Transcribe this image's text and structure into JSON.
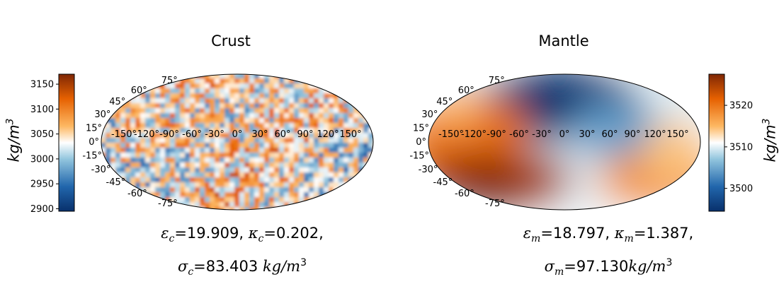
{
  "chart_data": [
    {
      "type": "heatmap",
      "projection": "mollweide",
      "title": "Crust",
      "lon_tick_labels": [
        "-150°",
        "-120°",
        "-90°",
        "-60°",
        "-30°",
        "0°",
        "30°",
        "60°",
        "90°",
        "120°",
        "150°"
      ],
      "lat_tick_labels": [
        "75°",
        "60°",
        "45°",
        "30°",
        "15°",
        "0°",
        "-15°",
        "-30°",
        "-45°",
        "-60°",
        "-75°"
      ],
      "colorbar": {
        "min": 2895,
        "max": 3170,
        "ticks": [
          2900,
          2950,
          3000,
          3050,
          3100,
          3150
        ],
        "tick_labels": [
          "2900",
          "2950",
          "3000",
          "3050",
          "3100",
          "3150"
        ],
        "label_main": "kg/m",
        "label_sup": "3",
        "colormap": "blue-white-orange",
        "colors": [
          "#08306b",
          "#2166ac",
          "#92c5de",
          "#ffffff",
          "#fdb863",
          "#e66101",
          "#7f2704"
        ]
      },
      "caption": {
        "eps_sym": "ε",
        "eps_sub": "c",
        "eps_val": "=19.909, ",
        "kappa_sym": "κ",
        "kappa_sub": "c",
        "kappa_val": "=0.202,",
        "sigma_sym": "σ",
        "sigma_sub": "c",
        "sigma_val": "=83.403 ",
        "unit_main": "kg/m",
        "unit_sup": "3"
      }
    },
    {
      "type": "heatmap",
      "projection": "mollweide",
      "title": "Mantle",
      "lon_tick_labels": [
        "-150°",
        "-120°",
        "-90°",
        "-60°",
        "-30°",
        "0°",
        "30°",
        "60°",
        "90°",
        "120°",
        "150°"
      ],
      "lat_tick_labels": [
        "75°",
        "60°",
        "45°",
        "30°",
        "15°",
        "0°",
        "-15°",
        "-30°",
        "-45°",
        "-60°",
        "-75°"
      ],
      "colorbar": {
        "min": 3494.5,
        "max": 3527.5,
        "ticks": [
          3500,
          3510,
          3520
        ],
        "tick_labels": [
          "3500",
          "3510",
          "3520"
        ],
        "label_main": "kg/m",
        "label_sup": "3",
        "colormap": "blue-white-orange",
        "colors": [
          "#08306b",
          "#2166ac",
          "#92c5de",
          "#ffffff",
          "#fdb863",
          "#e66101",
          "#7f2704"
        ]
      },
      "caption": {
        "eps_sym": "ε",
        "eps_sub": "m",
        "eps_val": "=18.797, ",
        "kappa_sym": "κ",
        "kappa_sub": "m",
        "kappa_val": "=1.387,",
        "sigma_sym": "σ",
        "sigma_sub": "m",
        "sigma_val": "=97.130",
        "unit_main": "kg/m",
        "unit_sup": "3"
      }
    }
  ]
}
